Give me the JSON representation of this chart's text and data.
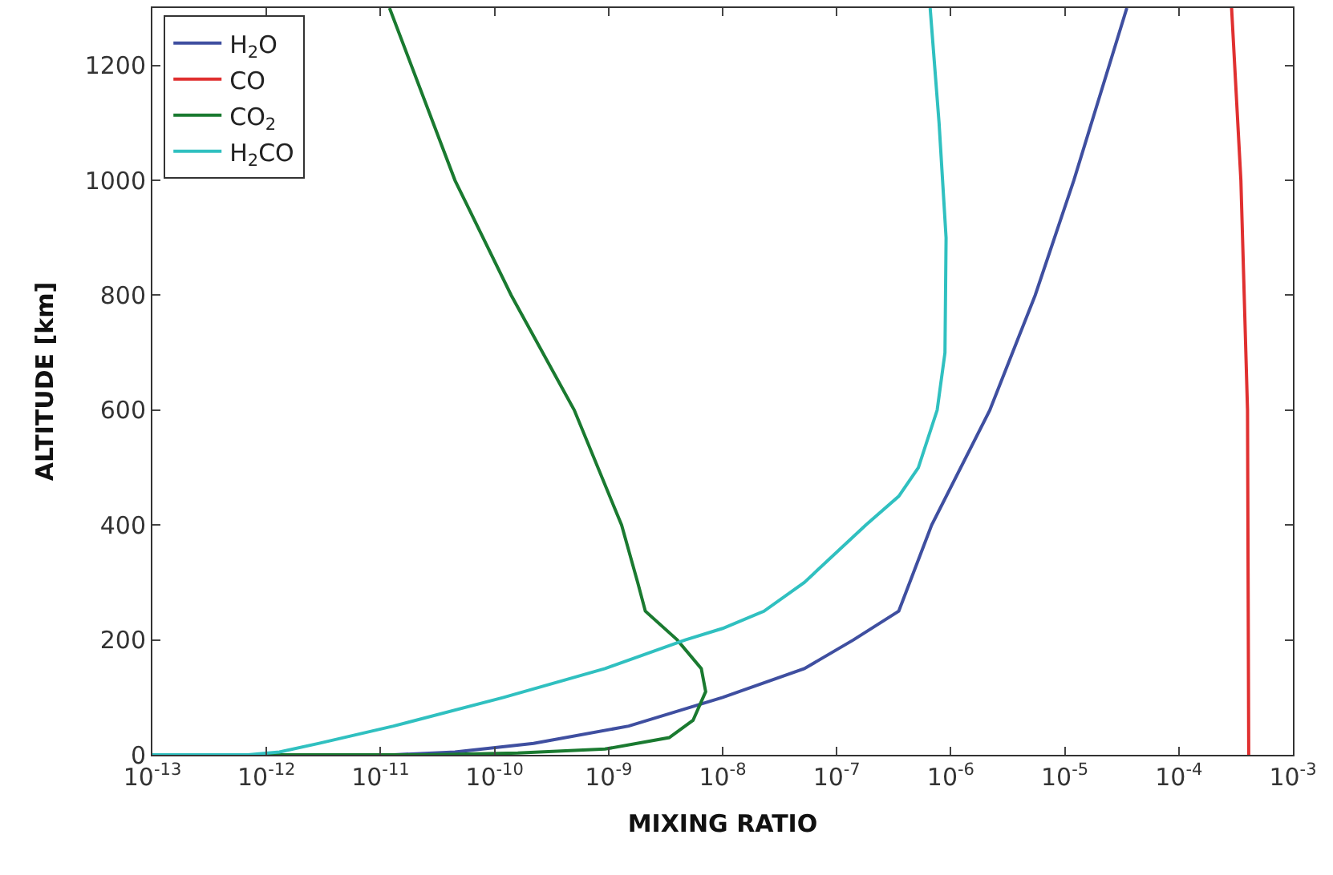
{
  "chart_data": {
    "type": "line",
    "xlabel": "MIXING RATIO",
    "ylabel": "ALTITUDE [km]",
    "log": "x",
    "legend": "top left",
    "marker": "none",
    "line_style": "solid",
    "xlim": [
      1e-13,
      0.001
    ],
    "xticks": [
      {
        "value": 1e-13,
        "label": "10$^{-13}$"
      },
      {
        "value": 1e-12,
        "label": "10$^{-12}$"
      },
      {
        "value": 1e-11,
        "label": "10$^{-11}$"
      },
      {
        "value": 1e-10,
        "label": "10$^{-10}$"
      },
      {
        "value": 1e-09,
        "label": "10$^{-9}$"
      },
      {
        "value": 1e-08,
        "label": "10$^{-8}$"
      },
      {
        "value": 1e-07,
        "label": "10$^{-7}$"
      },
      {
        "value": 1e-06,
        "label": "10$^{-6}$"
      },
      {
        "value": 1e-05,
        "label": "10$^{-5}$"
      },
      {
        "value": 0.0001,
        "label": "10$^{-4}$"
      },
      {
        "value": 0.001,
        "label": "10$^{-3}$"
      }
    ],
    "ylim": [
      0,
      1300
    ],
    "yticks": [
      0,
      200,
      400,
      600,
      800,
      1000,
      1200
    ],
    "series": [
      {
        "name": "H$_{2}$O",
        "color": "#3f4fa0",
        "x": [
          3.5e-05,
          1.2e-05,
          5.5e-06,
          2.2e-06,
          6.8e-07,
          3.5e-07,
          1.4e-07,
          5.2e-08,
          1e-08,
          1.5e-09,
          2.2e-10,
          4.5e-11,
          1.3e-11,
          1e-13
        ],
        "values": [
          1300,
          1000,
          800,
          600,
          400,
          250,
          200,
          150,
          100,
          50,
          20,
          5,
          0,
          0
        ]
      },
      {
        "name": "CO",
        "color": "#e03030",
        "x": [
          0.00029,
          0.00035,
          0.0004,
          0.00041
        ],
        "values": [
          1300,
          1000,
          600,
          0
        ]
      },
      {
        "name": "CO$_{2}$",
        "color": "#1a7a30",
        "x": [
          1.2e-11,
          4.5e-11,
          1.4e-10,
          5e-10,
          1.3e-09,
          1.8e-09,
          2.1e-09,
          4e-09,
          6.5e-09,
          7.1e-09,
          5.5e-09,
          3.4e-09,
          9.3e-10,
          1.6e-10,
          2.5e-11,
          1e-13
        ],
        "values": [
          1300,
          1000,
          800,
          600,
          400,
          300,
          250,
          200,
          150,
          110,
          60,
          30,
          10,
          3,
          0,
          0
        ]
      },
      {
        "name": "H$_{2}$CO",
        "color": "#30c0c0",
        "x": [
          6.6e-07,
          7.9e-07,
          9.1e-07,
          8.9e-07,
          7.6e-07,
          5.2e-07,
          3.5e-07,
          1.8e-07,
          5.2e-08,
          2.3e-08,
          1e-08,
          4.7e-09,
          9.3e-10,
          1.2e-10,
          1.3e-11,
          2.9e-12,
          1.3e-12,
          6.9e-13,
          1e-13
        ],
        "values": [
          1300,
          1100,
          900,
          700,
          600,
          500,
          450,
          400,
          300,
          250,
          220,
          200,
          150,
          100,
          50,
          20,
          5,
          0,
          0
        ]
      }
    ]
  }
}
